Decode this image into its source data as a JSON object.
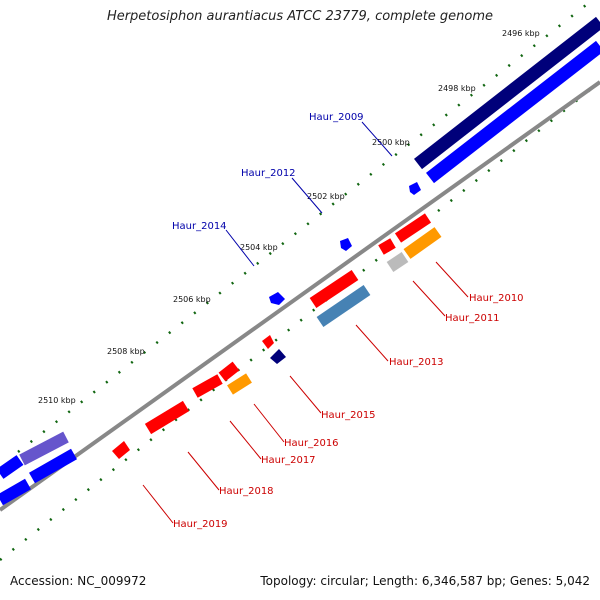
{
  "title": "Herpetosiphon aurantiacus ATCC 23779, complete genome",
  "accession": "Accession: NC_009972",
  "topology": "Topology: circular; Length: 6,346,587 bp; Genes: 5,042",
  "ticks": [
    "2496 kbp",
    "2498 kbp",
    "2500 kbp",
    "2502 kbp",
    "2504 kbp",
    "2506 kbp",
    "2508 kbp",
    "2510 kbp"
  ],
  "gene_labels": [
    "Haur_2009",
    "Haur_2012",
    "Haur_2014",
    "Haur_2010",
    "Haur_2011",
    "Haur_2013",
    "Haur_2015",
    "Haur_2016",
    "Haur_2017",
    "Haur_2018",
    "Haur_2019"
  ],
  "colors": {
    "forward_cds": "#0000ff",
    "reverse_cds": "#ff0000",
    "dark_blue": "#00007a",
    "orange": "#ff9900",
    "steel": "#4682b4",
    "grey": "#bbbbbb",
    "purple": "#6655cc",
    "tick": "#116611",
    "backbone": "#888888"
  }
}
